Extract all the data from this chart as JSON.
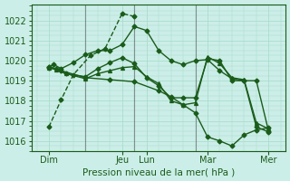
{
  "bg_color": "#cceee8",
  "grid_color": "#aaddcc",
  "line_color": "#1a5c1a",
  "xlabel": "Pression niveau de la mer( hPa )",
  "ylim": [
    1015.5,
    1022.8
  ],
  "yticks": [
    1016,
    1017,
    1018,
    1019,
    1020,
    1021,
    1022
  ],
  "xlim": [
    -0.2,
    10.2
  ],
  "xtick_positions": [
    0.5,
    3.5,
    4.5,
    7.0,
    9.5
  ],
  "xtick_labels": [
    "Dim",
    "Jeu",
    "Lun",
    "Mar",
    "Mer"
  ],
  "vlines_x": [
    2.0,
    4.0,
    6.5
  ],
  "vline_color": "#555555",
  "vline_lw": 0.8,
  "lines": [
    {
      "x": [
        0.5,
        1.0,
        1.5,
        2.2,
        2.8,
        3.5,
        4.0
      ],
      "y": [
        1016.7,
        1018.05,
        1019.3,
        1020.25,
        1020.6,
        1022.35,
        1022.2
      ],
      "marker": "D",
      "ms": 2.5,
      "lw": 1.0,
      "ls": "--"
    },
    {
      "x": [
        0.5,
        0.7,
        1.0,
        1.5,
        2.0,
        2.5,
        3.0,
        3.5,
        4.0,
        4.5,
        5.0,
        5.5,
        6.0,
        6.5,
        7.0,
        7.5,
        8.0,
        8.5,
        9.0,
        9.5
      ],
      "y": [
        1019.7,
        1019.8,
        1019.6,
        1019.9,
        1020.3,
        1020.5,
        1020.5,
        1020.8,
        1021.7,
        1021.5,
        1020.5,
        1020.0,
        1019.8,
        1020.0,
        1020.05,
        1019.5,
        1019.1,
        1019.0,
        1019.0,
        1016.5
      ],
      "marker": "D",
      "ms": 2.5,
      "lw": 1.0,
      "ls": "-"
    },
    {
      "x": [
        0.5,
        0.8,
        1.2,
        2.0,
        2.5,
        3.0,
        3.5,
        4.0,
        4.5,
        5.0,
        5.5,
        6.0,
        6.5,
        7.0,
        7.5,
        8.0,
        8.5,
        9.0,
        9.5
      ],
      "y": [
        1019.7,
        1019.6,
        1019.35,
        1019.2,
        1019.6,
        1019.9,
        1020.15,
        1019.85,
        1019.15,
        1018.75,
        1018.15,
        1018.15,
        1018.15,
        1020.1,
        1020.0,
        1019.0,
        1019.0,
        1016.7,
        1016.45
      ],
      "marker": "D",
      "ms": 2.5,
      "lw": 1.0,
      "ls": "-"
    },
    {
      "x": [
        0.5,
        0.8,
        1.2,
        2.0,
        2.5,
        3.0,
        3.5,
        4.0,
        4.5,
        5.0,
        5.5,
        6.0,
        6.5,
        7.0,
        7.5,
        8.0,
        8.5,
        9.0,
        9.5
      ],
      "y": [
        1019.65,
        1019.55,
        1019.35,
        1019.1,
        1019.35,
        1019.5,
        1019.65,
        1019.7,
        1019.2,
        1018.85,
        1018.0,
        1017.8,
        1017.9,
        1020.2,
        1019.85,
        1019.15,
        1019.05,
        1016.9,
        1016.6
      ],
      "marker": "^",
      "ms": 2.8,
      "lw": 1.0,
      "ls": "-"
    },
    {
      "x": [
        0.5,
        1.0,
        2.0,
        3.0,
        4.0,
        5.0,
        5.5,
        6.0,
        6.5,
        7.0,
        7.5,
        8.0,
        8.5,
        9.0,
        9.5
      ],
      "y": [
        1019.65,
        1019.5,
        1019.15,
        1019.05,
        1018.95,
        1018.5,
        1018.2,
        1017.8,
        1017.4,
        1016.2,
        1016.0,
        1015.75,
        1016.3,
        1016.55,
        1016.65
      ],
      "marker": "D",
      "ms": 2.5,
      "lw": 1.0,
      "ls": "-"
    }
  ]
}
